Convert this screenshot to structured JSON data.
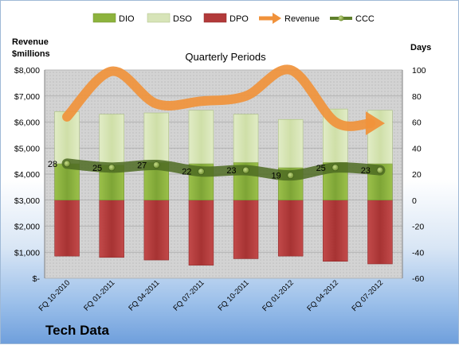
{
  "chart_data": {
    "type": "bar",
    "title": "Quarterly Periods",
    "company": "Tech Data",
    "left_axis_title_line1": "Revenue",
    "left_axis_title_line2": "$millions",
    "right_axis_title": "Days",
    "categories": [
      "FQ 10-2010",
      "FQ 01-2011",
      "FQ 04-2011",
      "FQ 07-2011",
      "FQ 10-2011",
      "FQ 01-2012",
      "FQ 04-2012",
      "FQ 07-2012"
    ],
    "left_axis": {
      "min": 0,
      "max": 8000,
      "ticks": [
        "$-",
        "$1,000",
        "$2,000",
        "$3,000",
        "$4,000",
        "$5,000",
        "$6,000",
        "$7,000",
        "$8,000"
      ],
      "tick_values": [
        0,
        1000,
        2000,
        3000,
        4000,
        5000,
        6000,
        7000,
        8000
      ]
    },
    "right_axis": {
      "min": -60,
      "max": 100,
      "ticks": [
        "-60",
        "-40",
        "-20",
        "0",
        "20",
        "40",
        "60",
        "80",
        "100"
      ],
      "tick_values": [
        -60,
        -40,
        -20,
        0,
        20,
        40,
        60,
        80,
        100
      ]
    },
    "series": [
      {
        "name": "DIO",
        "axis": "days",
        "color": "#8db33d",
        "values": [
          28,
          27,
          29,
          28,
          29,
          25,
          29,
          28
        ]
      },
      {
        "name": "DSO",
        "axis": "days",
        "color": "#d7e4b8",
        "values": [
          40,
          39,
          38,
          41,
          37,
          37,
          41,
          41
        ]
      },
      {
        "name": "DPO",
        "axis": "days",
        "color": "#b23a3a",
        "values": [
          -43,
          -44,
          -46,
          -50,
          -45,
          -43,
          -47,
          -49
        ]
      },
      {
        "name": "Revenue",
        "axis": "revenue",
        "color": "#f0923b",
        "values": [
          6200,
          7950,
          6700,
          6800,
          7000,
          8000,
          6000,
          5950
        ]
      },
      {
        "name": "CCC",
        "axis": "days",
        "color": "#5f7f2c",
        "values": [
          28,
          25,
          27,
          22,
          23,
          19,
          25,
          23
        ]
      }
    ],
    "ccc_labels": [
      "28",
      "25",
      "27",
      "22",
      "23",
      "19",
      "25",
      "23"
    ],
    "grid": true,
    "legend_position": "top"
  }
}
